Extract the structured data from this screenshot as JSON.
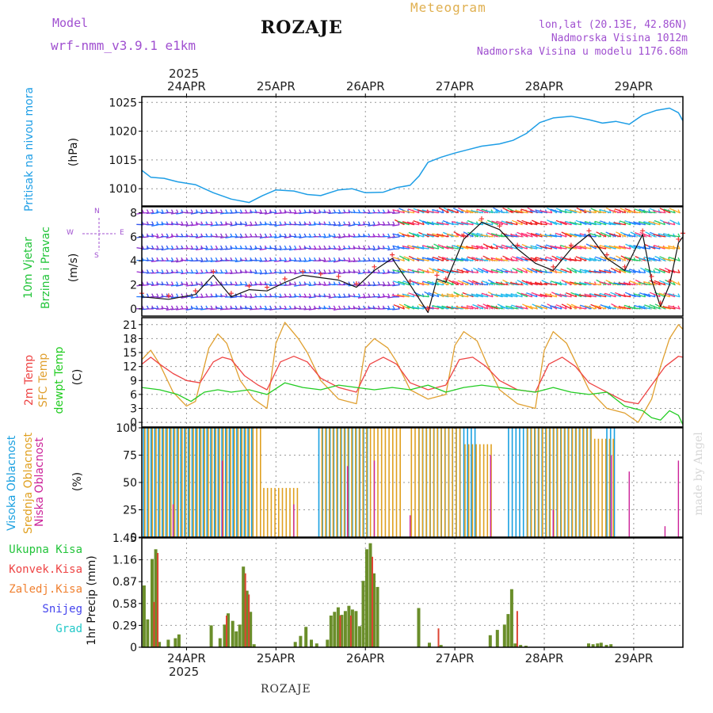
{
  "header": {
    "model_label": "Model",
    "model_name": "wrf-nmm_v3.9.1 e1km",
    "station": "ROZAJE",
    "meteogram": "Meteogram",
    "lonlat": "lon,lat (20.13E, 42.86N)",
    "altitude": "Nadmorska Visina 1012m",
    "model_altitude": "Nadmorska Visina u modelu 1176.68m",
    "year": "2025",
    "footer_station": "ROZAJE",
    "watermark": "made by Angel"
  },
  "colors": {
    "pressure": "#1e9ee6",
    "wind_label": "#22c43a",
    "temp_2m": "#ee4444",
    "temp_sfc": "#e0a030",
    "dewpoint": "#22cc22",
    "high_cloud": "#1aa0e0",
    "mid_cloud": "#e0a020",
    "low_cloud": "#cc2299",
    "total_precip": "#6a8e2a",
    "conv_precip": "#dd4433",
    "purple_text": "#a050d0"
  },
  "chart_data": [
    {
      "id": "pressure",
      "type": "line",
      "title": "",
      "ylabel_lines": [
        "Pritisak na nivou mora"
      ],
      "unit": "(hPa)",
      "ylim": [
        1007,
        1026
      ],
      "yticks": [
        "1010",
        "1015",
        "1020",
        "1025"
      ],
      "ytick_values": [
        1010,
        1015,
        1020,
        1025
      ],
      "x_days": [
        "24APR",
        "25APR",
        "26APR",
        "27APR",
        "28APR",
        "29APR"
      ],
      "x_day_positions": [
        0.5,
        1.5,
        2.5,
        3.5,
        4.5,
        5.5
      ],
      "xlim": [
        0,
        6.05
      ],
      "series": [
        {
          "x": [
            0,
            0.1,
            0.25,
            0.4,
            0.6,
            0.8,
            1.0,
            1.2,
            1.35,
            1.5,
            1.7,
            1.85,
            2.0,
            2.2,
            2.35,
            2.5,
            2.7,
            2.85,
            3.0,
            3.1,
            3.2,
            3.35,
            3.5,
            3.65,
            3.8,
            4.0,
            4.15,
            4.3,
            4.45,
            4.6,
            4.8,
            5.0,
            5.15,
            5.3,
            5.45,
            5.6,
            5.75,
            5.9,
            6.0,
            6.05
          ],
          "y": [
            1013.2,
            1012.0,
            1011.8,
            1011.2,
            1010.7,
            1009.3,
            1008.2,
            1007.6,
            1008.8,
            1009.8,
            1009.6,
            1009.0,
            1008.8,
            1009.8,
            1010.0,
            1009.3,
            1009.4,
            1010.2,
            1010.6,
            1012.2,
            1014.6,
            1015.5,
            1016.2,
            1016.8,
            1017.4,
            1017.8,
            1018.4,
            1019.6,
            1021.5,
            1022.3,
            1022.6,
            1022.0,
            1021.4,
            1021.7,
            1021.2,
            1022.8,
            1023.6,
            1024.0,
            1023.2,
            1021.8
          ]
        }
      ]
    },
    {
      "id": "wind",
      "type": "line",
      "title": "",
      "ylabel_lines": [
        "10m Vjetar",
        "Brzina i Pravac"
      ],
      "unit": "(m/s)",
      "compass": [
        "N",
        "W",
        "E",
        "S"
      ],
      "ylim": [
        -0.6,
        8.5
      ],
      "yticks": [
        "0",
        "2",
        "4",
        "6",
        "8"
      ],
      "ytick_values": [
        0,
        2,
        4,
        6,
        8
      ],
      "xlim": [
        0,
        6.05
      ],
      "barb_levels": [
        0,
        1,
        2,
        3,
        4,
        5,
        6,
        7,
        8
      ],
      "series": [
        {
          "name": "speed",
          "x": [
            0,
            0.3,
            0.6,
            0.8,
            1.0,
            1.2,
            1.4,
            1.6,
            1.8,
            2.0,
            2.2,
            2.4,
            2.6,
            2.8,
            3.0,
            3.2,
            3.3,
            3.4,
            3.6,
            3.8,
            4.0,
            4.2,
            4.4,
            4.6,
            4.8,
            5.0,
            5.2,
            5.4,
            5.6,
            5.7,
            5.8,
            5.9,
            6.0,
            6.05
          ],
          "y": [
            1.0,
            0.8,
            1.2,
            2.8,
            1.0,
            1.6,
            1.5,
            2.2,
            2.8,
            2.6,
            2.4,
            1.8,
            3.2,
            4.2,
            2.0,
            -0.3,
            2.5,
            2.2,
            5.8,
            7.2,
            6.6,
            5.0,
            3.8,
            3.2,
            5.0,
            6.2,
            4.2,
            3.2,
            6.2,
            2.4,
            0.2,
            2.0,
            5.5,
            6.0
          ]
        }
      ]
    },
    {
      "id": "temperature",
      "type": "line",
      "title": "",
      "ylabel_lines": [
        "2m Temp",
        "SFC Temp",
        "dewpt Temp"
      ],
      "unit": "(C)",
      "ylim": [
        -1,
        22.5
      ],
      "yticks": [
        "0",
        "3",
        "6",
        "9",
        "12",
        "15",
        "18",
        "21"
      ],
      "ytick_values": [
        0,
        3,
        6,
        9,
        12,
        15,
        18,
        21
      ],
      "xlim": [
        0,
        6.05
      ],
      "series": [
        {
          "name": "2m Temp",
          "x": [
            0,
            0.1,
            0.2,
            0.35,
            0.5,
            0.65,
            0.8,
            0.9,
            1.0,
            1.15,
            1.3,
            1.4,
            1.55,
            1.7,
            1.85,
            2.0,
            2.2,
            2.4,
            2.55,
            2.7,
            2.85,
            3.0,
            3.2,
            3.4,
            3.55,
            3.7,
            3.85,
            4.0,
            4.2,
            4.4,
            4.55,
            4.7,
            4.85,
            5.0,
            5.2,
            5.4,
            5.55,
            5.7,
            5.85,
            6.0,
            6.05
          ],
          "y": [
            12.5,
            14.0,
            12.5,
            10.5,
            9.0,
            8.5,
            13.0,
            14.0,
            13.5,
            10.0,
            8.0,
            7.0,
            13.0,
            14.2,
            13.0,
            9.5,
            7.5,
            6.5,
            12.5,
            14.0,
            12.5,
            8.5,
            7.0,
            8.0,
            13.5,
            14.0,
            12.0,
            9.0,
            7.0,
            6.5,
            12.5,
            14.0,
            12.0,
            8.5,
            6.5,
            4.5,
            4.0,
            8.0,
            12.0,
            14.2,
            14.0
          ]
        },
        {
          "name": "SFC Temp",
          "x": [
            0,
            0.1,
            0.2,
            0.35,
            0.5,
            0.6,
            0.75,
            0.85,
            0.95,
            1.1,
            1.25,
            1.4,
            1.5,
            1.6,
            1.75,
            1.85,
            2.0,
            2.2,
            2.4,
            2.5,
            2.6,
            2.75,
            2.85,
            3.0,
            3.2,
            3.4,
            3.5,
            3.6,
            3.75,
            3.85,
            4.0,
            4.2,
            4.4,
            4.5,
            4.6,
            4.75,
            4.85,
            5.0,
            5.2,
            5.4,
            5.55,
            5.7,
            5.8,
            5.9,
            6.0,
            6.05
          ],
          "y": [
            13.5,
            15.5,
            12.5,
            6.5,
            3.5,
            4.5,
            16.0,
            19.0,
            17.0,
            9.0,
            5.0,
            3.0,
            17.0,
            21.5,
            18.0,
            15.0,
            9.0,
            5.0,
            4.0,
            16.0,
            18.0,
            16.0,
            13.0,
            7.0,
            5.0,
            6.0,
            16.5,
            19.5,
            17.5,
            13.0,
            7.0,
            4.0,
            3.0,
            15.5,
            19.5,
            17.0,
            13.0,
            7.0,
            3.0,
            2.0,
            0.0,
            5.0,
            12.0,
            18.0,
            21.0,
            20.0
          ]
        },
        {
          "name": "dewpt Temp",
          "x": [
            0,
            0.2,
            0.4,
            0.55,
            0.7,
            0.85,
            1.0,
            1.2,
            1.4,
            1.6,
            1.8,
            2.0,
            2.2,
            2.4,
            2.6,
            2.8,
            3.0,
            3.2,
            3.4,
            3.6,
            3.8,
            4.0,
            4.2,
            4.4,
            4.6,
            4.8,
            5.0,
            5.2,
            5.4,
            5.6,
            5.7,
            5.8,
            5.9,
            6.0,
            6.05
          ],
          "y": [
            7.5,
            7.0,
            6.0,
            4.5,
            6.5,
            7.0,
            6.5,
            7.0,
            6.0,
            8.5,
            7.5,
            7.0,
            8.0,
            7.5,
            7.0,
            7.5,
            7.0,
            8.0,
            6.5,
            7.5,
            8.0,
            7.5,
            7.0,
            6.5,
            7.5,
            6.5,
            6.0,
            6.5,
            3.5,
            2.5,
            1.0,
            0.5,
            2.5,
            1.5,
            -0.5
          ]
        }
      ]
    },
    {
      "id": "clouds",
      "type": "bar",
      "title": "",
      "ylabel_lines": [
        "Visoka Oblacnost",
        "Srednja Oblacnost",
        "Niska Oblacnost"
      ],
      "unit": "(%)",
      "ylim": [
        0,
        100
      ],
      "yticks": [
        "0",
        "25",
        "50",
        "75",
        "100"
      ],
      "ytick_values": [
        0,
        25,
        50,
        75,
        100
      ],
      "xlim": [
        0,
        6.05
      ],
      "series": [
        {
          "name": "Visoka Oblacnost",
          "segments": [
            [
              0.02,
              1.25,
              100
            ],
            [
              1.98,
              2.55,
              100
            ],
            [
              3.1,
              3.75,
              100
            ],
            [
              4.1,
              5.05,
              100
            ],
            [
              5.2,
              5.3,
              100
            ]
          ]
        },
        {
          "name": "Srednja Oblacnost",
          "segments": [
            [
              0.02,
              1.35,
              100
            ],
            [
              1.35,
              1.75,
              45
            ],
            [
              2.0,
              2.9,
              100
            ],
            [
              3.0,
              3.55,
              100
            ],
            [
              3.6,
              3.9,
              85
            ],
            [
              4.3,
              5.05,
              100
            ],
            [
              5.05,
              5.3,
              90
            ]
          ]
        },
        {
          "name": "Niska Oblacnost",
          "spikes": [
            [
              0.35,
              30
            ],
            [
              0.9,
              70
            ],
            [
              1.7,
              30
            ],
            [
              2.3,
              65
            ],
            [
              2.6,
              70
            ],
            [
              3.0,
              20
            ],
            [
              3.9,
              75
            ],
            [
              4.6,
              25
            ],
            [
              5.25,
              75
            ],
            [
              5.45,
              60
            ],
            [
              5.85,
              10
            ],
            [
              6.0,
              70
            ]
          ]
        }
      ]
    },
    {
      "id": "precip",
      "type": "bar",
      "title": "",
      "ylabel_lines": [
        "1hr Precip (mm)"
      ],
      "legend": [
        "Ukupna Kisa",
        "Konvek.Kisa",
        "Zaledj.Kisa",
        "Snijeg",
        "Grad"
      ],
      "ylim": [
        0,
        1.45
      ],
      "yticks": [
        "0",
        "0.29",
        "0.58",
        "0.87",
        "1.16",
        "1.45"
      ],
      "ytick_values": [
        0,
        0.29,
        0.58,
        0.87,
        1.16,
        1.45
      ],
      "xlim": [
        0,
        6.05
      ],
      "series": [
        {
          "name": "Ukupna Kisa",
          "x": [
            0.03,
            0.07,
            0.12,
            0.16,
            0.2,
            0.3,
            0.38,
            0.42,
            0.78,
            0.88,
            0.93,
            0.97,
            1.02,
            1.06,
            1.1,
            1.14,
            1.18,
            1.22,
            1.26,
            1.72,
            1.78,
            1.84,
            1.9,
            1.96,
            2.08,
            2.12,
            2.16,
            2.2,
            2.24,
            2.28,
            2.32,
            2.36,
            2.4,
            2.44,
            2.48,
            2.52,
            2.56,
            2.6,
            2.64,
            3.1,
            3.22,
            3.35,
            3.9,
            3.98,
            4.06,
            4.1,
            4.14,
            4.18,
            4.24,
            4.3,
            5.0,
            5.05,
            5.1,
            5.14,
            5.2,
            5.25
          ],
          "y": [
            0.82,
            0.37,
            1.17,
            1.3,
            0.07,
            0.1,
            0.12,
            0.17,
            0.29,
            0.12,
            0.3,
            0.45,
            0.35,
            0.21,
            0.3,
            1.07,
            0.75,
            0.47,
            0.04,
            0.07,
            0.15,
            0.27,
            0.1,
            0.05,
            0.1,
            0.42,
            0.47,
            0.53,
            0.43,
            0.48,
            0.55,
            0.5,
            0.48,
            0.28,
            0.88,
            1.3,
            1.38,
            0.98,
            0.8,
            0.52,
            0.06,
            0.03,
            0.16,
            0.23,
            0.3,
            0.44,
            0.77,
            0.05,
            0.03,
            0.02,
            0.05,
            0.04,
            0.05,
            0.06,
            0.03,
            0.04
          ]
        },
        {
          "name": "Konvek.Kisa",
          "x": [
            0.12,
            0.16,
            0.93,
            1.14,
            1.18,
            2.2,
            2.32,
            2.56,
            3.3,
            4.18
          ],
          "y": [
            0.6,
            1.25,
            0.42,
            0.98,
            0.7,
            0.42,
            0.42,
            1.2,
            0.25,
            0.48
          ]
        }
      ]
    }
  ]
}
